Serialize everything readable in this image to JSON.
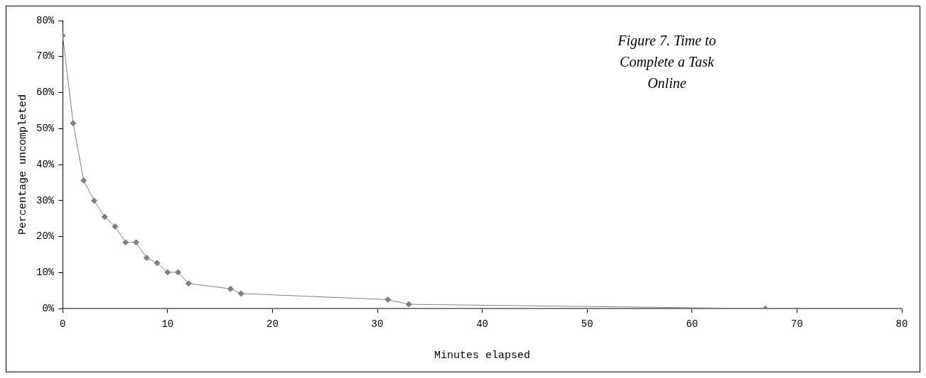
{
  "chart_data": {
    "type": "line",
    "title": "Figure 7. Time to Complete a Task Online",
    "xlabel": "Minutes elapsed",
    "ylabel": "Percentage uncompleted",
    "x": [
      0,
      1,
      2,
      3,
      4,
      5,
      6,
      7,
      8,
      9,
      10,
      11,
      12,
      16,
      17,
      31,
      33,
      67
    ],
    "series": [
      {
        "color": "#808080",
        "values": [
          75.8,
          51.5,
          35.6,
          30.0,
          25.5,
          22.8,
          18.4,
          18.4,
          14.1,
          12.7,
          10.1,
          10.1,
          7.0,
          5.5,
          4.2,
          2.5,
          1.2,
          0
        ]
      }
    ],
    "xlim": [
      0,
      80
    ],
    "xticks": [
      0,
      10,
      20,
      30,
      40,
      50,
      60,
      70,
      80
    ],
    "ylim": [
      0,
      80
    ],
    "yticks": [
      {
        "value": 0,
        "label": "0%"
      },
      {
        "value": 10,
        "label": "10%"
      },
      {
        "value": 20,
        "label": "20%"
      },
      {
        "value": 30,
        "label": "30%"
      },
      {
        "value": 40,
        "label": "40%"
      },
      {
        "value": 50,
        "label": "50%"
      },
      {
        "value": 60,
        "label": "60%"
      },
      {
        "value": 70,
        "label": "70%"
      },
      {
        "value": 80,
        "label": "80%"
      }
    ],
    "grid": false,
    "legend": false,
    "marker": "diamond",
    "line_style": "solid"
  }
}
